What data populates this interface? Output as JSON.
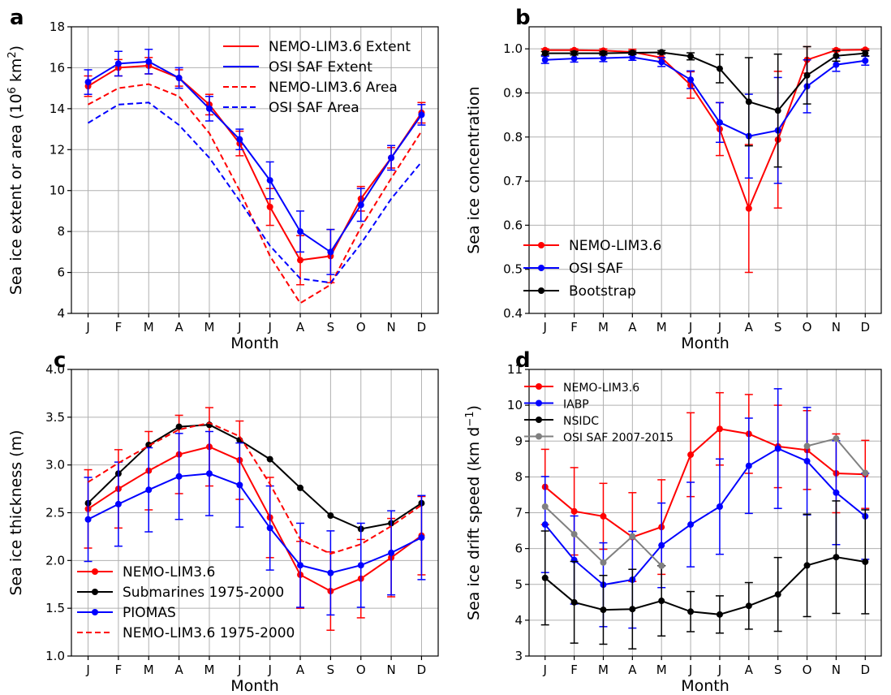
{
  "months": [
    "J",
    "F",
    "M",
    "A",
    "M",
    "J",
    "J",
    "A",
    "S",
    "O",
    "N",
    "D"
  ],
  "colors": {
    "red": "#ff0000",
    "blue": "#0000ff",
    "black": "#000000",
    "gray": "#808080",
    "grid": "#b0b0b0"
  },
  "chart_data": [
    {
      "panel": "a",
      "type": "line",
      "xlabel": "Month",
      "ylabel": "Sea ice extent or area (10⁶ km²)",
      "ylim": [
        4,
        18
      ],
      "yticks": [
        4,
        6,
        8,
        10,
        12,
        14,
        16,
        18
      ],
      "grid": true,
      "legend_position": "top-right",
      "series": [
        {
          "name": "NEMO-LIM3.6 Extent",
          "color": "#ff0000",
          "dash": false,
          "markers": true,
          "values": [
            15.1,
            16.0,
            16.1,
            15.5,
            14.2,
            12.3,
            9.2,
            6.6,
            6.8,
            9.6,
            11.6,
            13.8
          ],
          "errors": [
            0.5,
            0.4,
            0.4,
            0.4,
            0.5,
            0.6,
            0.9,
            1.2,
            1.3,
            0.6,
            0.5,
            0.5
          ]
        },
        {
          "name": "OSI SAF Extent",
          "color": "#0000ff",
          "dash": false,
          "markers": true,
          "values": [
            15.3,
            16.2,
            16.3,
            15.5,
            14.0,
            12.5,
            10.5,
            8.0,
            7.0,
            9.3,
            11.6,
            13.7
          ],
          "errors": [
            0.6,
            0.6,
            0.6,
            0.5,
            0.6,
            0.5,
            0.9,
            1.0,
            1.1,
            0.8,
            0.6,
            0.5
          ]
        },
        {
          "name": "NEMO-LIM3.6 Area",
          "color": "#ff0000",
          "dash": true,
          "markers": false,
          "values": [
            14.2,
            15.0,
            15.2,
            14.6,
            12.8,
            10.0,
            6.8,
            4.5,
            5.4,
            8.2,
            10.6,
            12.9
          ]
        },
        {
          "name": "OSI SAF Area",
          "color": "#0000ff",
          "dash": true,
          "markers": false,
          "values": [
            13.3,
            14.2,
            14.3,
            13.2,
            11.6,
            9.5,
            7.3,
            5.7,
            5.5,
            7.4,
            9.6,
            11.4
          ]
        }
      ]
    },
    {
      "panel": "b",
      "type": "line",
      "xlabel": "Month",
      "ylabel": "Sea ice concentration",
      "ylim": [
        0.4,
        1.05
      ],
      "yticks": [
        0.4,
        0.5,
        0.6,
        0.7,
        0.8,
        0.9,
        1.0
      ],
      "grid": true,
      "legend_position": "bottom-left",
      "series": [
        {
          "name": "NEMO-LIM3.6",
          "color": "#ff0000",
          "dash": false,
          "markers": true,
          "values": [
            0.997,
            0.997,
            0.996,
            0.993,
            0.98,
            0.918,
            0.818,
            0.638,
            0.794,
            0.975,
            0.997,
            0.998
          ],
          "errors": [
            0.003,
            0.003,
            0.004,
            0.006,
            0.01,
            0.03,
            0.06,
            0.145,
            0.155,
            0.03,
            0.003,
            0.002
          ]
        },
        {
          "name": "OSI SAF",
          "color": "#0000ff",
          "dash": false,
          "markers": true,
          "values": [
            0.975,
            0.978,
            0.979,
            0.981,
            0.97,
            0.93,
            0.833,
            0.802,
            0.815,
            0.915,
            0.964,
            0.973
          ],
          "errors": [
            0.008,
            0.008,
            0.008,
            0.007,
            0.01,
            0.02,
            0.045,
            0.095,
            0.12,
            0.06,
            0.015,
            0.01
          ]
        },
        {
          "name": "Bootstrap",
          "color": "#000000",
          "dash": false,
          "markers": true,
          "values": [
            0.99,
            0.99,
            0.99,
            0.991,
            0.992,
            0.983,
            0.955,
            0.88,
            0.86,
            0.94,
            0.984,
            0.99
          ],
          "errors": [
            0.004,
            0.004,
            0.004,
            0.004,
            0.004,
            0.008,
            0.032,
            0.1,
            0.128,
            0.065,
            0.012,
            0.006
          ]
        }
      ]
    },
    {
      "panel": "c",
      "type": "line",
      "xlabel": "Month",
      "ylabel": "Sea ice thickness (m)",
      "ylim": [
        1.0,
        4.0
      ],
      "yticks": [
        1.0,
        1.5,
        2.0,
        2.5,
        3.0,
        3.5,
        4.0
      ],
      "grid": true,
      "legend_position": "bottom-left",
      "series": [
        {
          "name": "NEMO-LIM3.6",
          "color": "#ff0000",
          "dash": false,
          "markers": true,
          "values": [
            2.54,
            2.75,
            2.94,
            3.11,
            3.19,
            3.05,
            2.45,
            1.85,
            1.68,
            1.81,
            2.03,
            2.26
          ],
          "errors": [
            0.41,
            0.41,
            0.41,
            0.41,
            0.41,
            0.41,
            0.42,
            0.35,
            0.41,
            0.41,
            0.41,
            0.41
          ]
        },
        {
          "name": "Submarines 1975-2000",
          "color": "#000000",
          "dash": false,
          "markers": true,
          "values": [
            2.6,
            2.91,
            3.21,
            3.4,
            3.42,
            3.26,
            3.06,
            2.76,
            2.47,
            2.33,
            2.39,
            2.6
          ]
        },
        {
          "name": "PIOMAS",
          "color": "#0000ff",
          "dash": false,
          "markers": true,
          "values": [
            2.43,
            2.59,
            2.74,
            2.88,
            2.91,
            2.79,
            2.34,
            1.95,
            1.87,
            1.95,
            2.08,
            2.24
          ],
          "errors": [
            0.44,
            0.44,
            0.44,
            0.45,
            0.44,
            0.44,
            0.44,
            0.44,
            0.44,
            0.44,
            0.44,
            0.44
          ]
        },
        {
          "name": "NEMO-LIM3.6 1975-2000",
          "color": "#ff0000",
          "dash": true,
          "markers": false,
          "values": [
            2.82,
            3.02,
            3.2,
            3.37,
            3.44,
            3.3,
            2.8,
            2.22,
            2.07,
            2.17,
            2.36,
            2.58
          ]
        }
      ]
    },
    {
      "panel": "d",
      "type": "line",
      "xlabel": "Month",
      "ylabel": "Sea ice drift speed (km d⁻¹)",
      "ylim": [
        3,
        11
      ],
      "yticks": [
        3,
        4,
        5,
        6,
        7,
        8,
        9,
        10,
        11
      ],
      "grid": true,
      "legend_position": "top-left",
      "series": [
        {
          "name": "NEMO-LIM3.6",
          "color": "#ff0000",
          "dash": false,
          "markers": true,
          "values": [
            7.72,
            7.04,
            6.9,
            6.32,
            6.6,
            8.62,
            9.34,
            9.2,
            8.85,
            8.75,
            8.1,
            8.07
          ],
          "errors": [
            1.05,
            1.22,
            0.92,
            1.24,
            1.32,
            1.17,
            1.01,
            1.1,
            1.15,
            1.1,
            1.1,
            0.95
          ]
        },
        {
          "name": "IABP",
          "color": "#0000ff",
          "dash": false,
          "markers": true,
          "values": [
            6.67,
            5.68,
            4.99,
            5.13,
            6.09,
            6.67,
            7.17,
            8.31,
            8.79,
            8.44,
            7.56,
            6.9
          ],
          "errors": [
            1.34,
            1.23,
            1.17,
            1.35,
            1.18,
            1.18,
            1.33,
            1.33,
            1.67,
            1.5,
            1.45,
            1.2
          ]
        },
        {
          "name": "NSIDC",
          "color": "#000000",
          "dash": false,
          "markers": true,
          "values": [
            5.18,
            4.5,
            4.29,
            4.31,
            4.54,
            4.24,
            4.16,
            4.4,
            4.72,
            5.53,
            5.76,
            5.63
          ],
          "errors": [
            1.31,
            1.14,
            0.96,
            1.11,
            0.98,
            0.56,
            0.52,
            0.65,
            1.03,
            1.43,
            1.57,
            1.45
          ]
        },
        {
          "name": "OSI SAF 2007-2015",
          "color": "#808080",
          "dash": false,
          "markers": true,
          "values": [
            7.17,
            6.4,
            5.61,
            6.34,
            5.52,
            null,
            null,
            null,
            null,
            8.86,
            9.07,
            8.11
          ]
        }
      ]
    }
  ]
}
